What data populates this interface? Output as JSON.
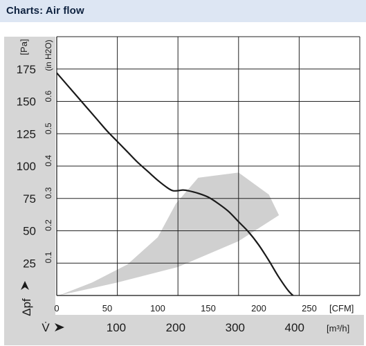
{
  "header": {
    "title": "Charts: Air flow"
  },
  "chart_data": {
    "type": "line",
    "title": "",
    "left_axis": {
      "label": "Δpf",
      "unit": "[Pa]",
      "range": [
        0,
        200
      ],
      "ticks": [
        25,
        50,
        75,
        100,
        125,
        150,
        175
      ]
    },
    "inner_axis": {
      "unit": "(in H2O)",
      "ticks": [
        0.1,
        0.2,
        0.3,
        0.4,
        0.5,
        0.6
      ]
    },
    "bottom_axis": {
      "unit": "[CFM]",
      "range": [
        0,
        300
      ],
      "ticks": [
        0,
        50,
        100,
        150,
        200,
        250
      ]
    },
    "lower_axis": {
      "label": "V̇",
      "unit": "[m³/h]",
      "ticks": [
        100,
        200,
        300,
        400
      ]
    },
    "grid": true,
    "series": [
      {
        "x": [
          0,
          10,
          20,
          30,
          40,
          50,
          60,
          70,
          80,
          90,
          100,
          110,
          115,
          120,
          125,
          130,
          140,
          150,
          160,
          170,
          180,
          190,
          200,
          210,
          220,
          230,
          240
        ],
        "y": [
          172,
          163,
          154,
          145,
          136,
          127,
          119,
          111,
          103,
          96,
          89,
          83,
          81,
          81,
          81.5,
          81,
          79,
          76,
          71,
          65,
          57,
          49,
          39,
          27,
          14,
          3,
          -4
        ]
      }
    ],
    "colors": {
      "curve": "#1a1a1a",
      "band": "#d0d0d0",
      "axis_panel": "#d6d6d6",
      "grid": "#222222"
    }
  }
}
